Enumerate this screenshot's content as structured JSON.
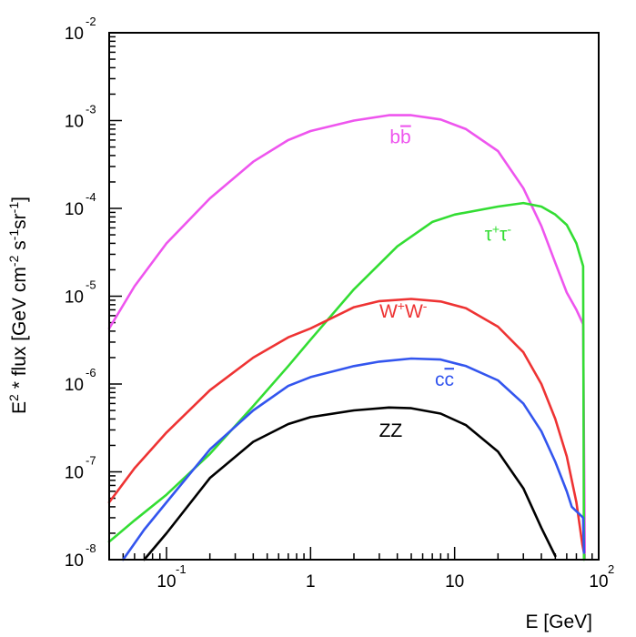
{
  "chart_data": {
    "type": "line",
    "xscale": "log",
    "yscale": "log",
    "xlim": [
      0.04,
      100
    ],
    "ylim": [
      1e-08,
      0.01
    ],
    "xlabel": "E [GeV]",
    "ylabel": {
      "parts": [
        {
          "t": "E"
        },
        {
          "t": "2",
          "sup": true
        },
        {
          "t": " * flux [GeV cm"
        },
        {
          "t": "-2",
          "sup": true
        },
        {
          "t": " s"
        },
        {
          "t": "-1",
          "sup": true
        },
        {
          "t": "sr"
        },
        {
          "t": "-1",
          "sup": true
        },
        {
          "t": "]"
        }
      ]
    },
    "x_ticks": [
      {
        "value": 0.1,
        "base": "10",
        "exp": "-1"
      },
      {
        "value": 1,
        "base": "1",
        "exp": ""
      },
      {
        "value": 10,
        "base": "10",
        "exp": ""
      },
      {
        "value": 100,
        "base": "10",
        "exp": "2"
      }
    ],
    "y_ticks": [
      {
        "value": 0.01,
        "base": "10",
        "exp": "-2"
      },
      {
        "value": 0.001,
        "base": "10",
        "exp": "-3"
      },
      {
        "value": 0.0001,
        "base": "10",
        "exp": "-4"
      },
      {
        "value": 1e-05,
        "base": "10",
        "exp": "-5"
      },
      {
        "value": 1e-06,
        "base": "10",
        "exp": "-6"
      },
      {
        "value": 1e-07,
        "base": "10",
        "exp": "-7"
      },
      {
        "value": 1e-08,
        "base": "10",
        "exp": "-8"
      }
    ],
    "series": [
      {
        "id": "bb",
        "label": {
          "parts": [
            {
              "t": "b"
            },
            {
              "t": "b",
              "bar": true
            }
          ]
        },
        "color": "#ee55ee",
        "label_at": [
          4.2,
          0.00055
        ],
        "points": [
          [
            0.04,
            4.3e-06
          ],
          [
            0.06,
            1.3e-05
          ],
          [
            0.1,
            4e-05
          ],
          [
            0.2,
            0.00013
          ],
          [
            0.4,
            0.00034
          ],
          [
            0.7,
            0.0006
          ],
          [
            1.0,
            0.00076
          ],
          [
            2.0,
            0.001
          ],
          [
            3.5,
            0.00115
          ],
          [
            5.0,
            0.00115
          ],
          [
            8.0,
            0.00103
          ],
          [
            12,
            0.0008
          ],
          [
            20,
            0.00045
          ],
          [
            30,
            0.00017
          ],
          [
            40,
            6.3e-05
          ],
          [
            50,
            2.4e-05
          ],
          [
            60,
            1.1e-05
          ],
          [
            70,
            7e-06
          ],
          [
            78,
            4.8e-06
          ],
          [
            80,
            1.2e-08
          ]
        ]
      },
      {
        "id": "tautau",
        "label": {
          "parts": [
            {
              "t": "τ"
            },
            {
              "t": "+",
              "sup": true
            },
            {
              "t": "τ"
            },
            {
              "t": "-",
              "sup": true
            }
          ]
        },
        "color": "#33dd33",
        "label_at": [
          20,
          4.3e-05
        ],
        "points": [
          [
            0.04,
            1.6e-08
          ],
          [
            0.06,
            2.8e-08
          ],
          [
            0.1,
            5.5e-08
          ],
          [
            0.2,
            1.6e-07
          ],
          [
            0.4,
            5.6e-07
          ],
          [
            0.7,
            1.6e-06
          ],
          [
            1.0,
            3.2e-06
          ],
          [
            2.0,
            1.2e-05
          ],
          [
            4.0,
            3.7e-05
          ],
          [
            7.0,
            7e-05
          ],
          [
            10.0,
            8.5e-05
          ],
          [
            20.0,
            0.000105
          ],
          [
            30.0,
            0.000115
          ],
          [
            40.0,
            0.000105
          ],
          [
            50.0,
            8.5e-05
          ],
          [
            60.0,
            6.5e-05
          ],
          [
            70.0,
            4e-05
          ],
          [
            78.0,
            2.2e-05
          ],
          [
            79.0,
            1e-08
          ]
        ]
      },
      {
        "id": "ww",
        "label": {
          "parts": [
            {
              "t": "W"
            },
            {
              "t": "+",
              "sup": true
            },
            {
              "t": "W"
            },
            {
              "t": "-",
              "sup": true
            }
          ]
        },
        "color": "#ee3333",
        "label_at": [
          4.4,
          5.7e-06
        ],
        "points": [
          [
            0.04,
            4.5e-08
          ],
          [
            0.06,
            1.1e-07
          ],
          [
            0.1,
            2.8e-07
          ],
          [
            0.2,
            8.5e-07
          ],
          [
            0.4,
            2e-06
          ],
          [
            0.7,
            3.4e-06
          ],
          [
            1.0,
            4.3e-06
          ],
          [
            2.0,
            7.5e-06
          ],
          [
            3.0,
            8.8e-06
          ],
          [
            5.0,
            9.3e-06
          ],
          [
            8.0,
            8.7e-06
          ],
          [
            12,
            7.3e-06
          ],
          [
            20,
            4.5e-06
          ],
          [
            30,
            2.3e-06
          ],
          [
            40,
            1e-06
          ],
          [
            50,
            4e-07
          ],
          [
            60,
            1.5e-07
          ],
          [
            70,
            4.5e-08
          ],
          [
            77,
            1.5e-08
          ],
          [
            79,
            1.2e-08
          ]
        ]
      },
      {
        "id": "cc",
        "label": {
          "parts": [
            {
              "t": "c"
            },
            {
              "t": "c",
              "bar": true
            }
          ]
        },
        "color": "#3355ee",
        "label_at": [
          8.5,
          9.5e-07
        ],
        "points": [
          [
            0.05,
            1e-08
          ],
          [
            0.07,
            2.2e-08
          ],
          [
            0.1,
            4.5e-08
          ],
          [
            0.2,
            1.8e-07
          ],
          [
            0.4,
            5e-07
          ],
          [
            0.7,
            9.5e-07
          ],
          [
            1.0,
            1.2e-06
          ],
          [
            2.0,
            1.6e-06
          ],
          [
            3.0,
            1.8e-06
          ],
          [
            5.0,
            1.95e-06
          ],
          [
            8.0,
            1.9e-06
          ],
          [
            12,
            1.6e-06
          ],
          [
            20,
            1.1e-06
          ],
          [
            30,
            6e-07
          ],
          [
            40,
            2.9e-07
          ],
          [
            50,
            1.3e-07
          ],
          [
            60,
            6e-08
          ],
          [
            65,
            4e-08
          ],
          [
            75,
            3.2e-08
          ],
          [
            78,
            3e-08
          ],
          [
            79,
            1.2e-08
          ]
        ]
      },
      {
        "id": "zz",
        "label": {
          "parts": [
            {
              "t": "ZZ"
            }
          ]
        },
        "color": "#000000",
        "label_at": [
          3.6,
          2.5e-07
        ],
        "points": [
          [
            0.07,
            1e-08
          ],
          [
            0.1,
            2e-08
          ],
          [
            0.2,
            8.5e-08
          ],
          [
            0.4,
            2.2e-07
          ],
          [
            0.7,
            3.5e-07
          ],
          [
            1.0,
            4.2e-07
          ],
          [
            2.0,
            5e-07
          ],
          [
            3.5,
            5.4e-07
          ],
          [
            5.0,
            5.3e-07
          ],
          [
            8.0,
            4.6e-07
          ],
          [
            12,
            3.4e-07
          ],
          [
            20,
            1.7e-07
          ],
          [
            30,
            6.5e-08
          ],
          [
            40,
            2.3e-08
          ],
          [
            50,
            1.1e-08
          ]
        ]
      }
    ]
  }
}
